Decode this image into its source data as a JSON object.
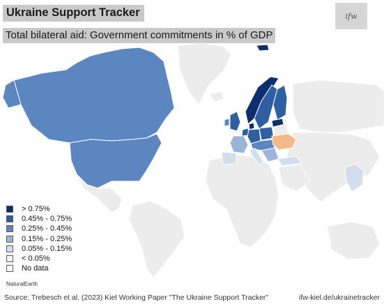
{
  "header": {
    "title": "Ukraine Support Tracker",
    "subtitle": "Total bilateral aid: Government commitments in % of GDP",
    "logo_text": "ifw"
  },
  "map": {
    "background": "#ffffff",
    "no_data_fill": "#ececec",
    "border_color": "#ffffff",
    "ukraine_fill": "#f2b98a",
    "regions": [
      {
        "name": "Canada",
        "category": "0.25% - 0.45%"
      },
      {
        "name": "United States",
        "category": "0.25% - 0.45%"
      },
      {
        "name": "Norway",
        "category": "> 0.75%"
      },
      {
        "name": "Sweden",
        "category": "0.45% - 0.75%"
      },
      {
        "name": "Finland",
        "category": "0.45% - 0.75%"
      },
      {
        "name": "Estonia",
        "category": "> 0.75%"
      },
      {
        "name": "Latvia",
        "category": "> 0.75%"
      },
      {
        "name": "Lithuania",
        "category": "> 0.75%"
      },
      {
        "name": "Poland",
        "category": "0.45% - 0.75%"
      },
      {
        "name": "Denmark",
        "category": "> 0.75%"
      },
      {
        "name": "Germany",
        "category": "0.45% - 0.75%"
      },
      {
        "name": "United Kingdom",
        "category": "0.45% - 0.75%"
      },
      {
        "name": "France",
        "category": "0.15% - 0.25%"
      },
      {
        "name": "Spain",
        "category": "0.05% - 0.15%"
      },
      {
        "name": "Italy",
        "category": "0.05% - 0.15%"
      },
      {
        "name": "Japan",
        "category": "0.05% - 0.15%"
      },
      {
        "name": "Turkey",
        "category": "0.05% - 0.15%"
      }
    ]
  },
  "legend": {
    "items": [
      {
        "label": "> 0.75%",
        "color": "#0d2f6e"
      },
      {
        "label": "0.45% - 0.75%",
        "color": "#2f5fa3"
      },
      {
        "label": "0.25% - 0.45%",
        "color": "#5c86c0"
      },
      {
        "label": "0.15% - 0.25%",
        "color": "#9cb4d8"
      },
      {
        "label": "0.05% - 0.15%",
        "color": "#d2ddee"
      },
      {
        "label": "< 0.05%",
        "color": "#f3f5fa"
      },
      {
        "label": "No data",
        "color": "#ffffff"
      }
    ]
  },
  "credit": "NaturalEarth",
  "footer": {
    "source": "Source: Trebesch et al. (2023) Kiel Working Paper \"The Ukraine Support Tracker\"",
    "url": "ifw-kiel.de/ukrainetracker"
  }
}
